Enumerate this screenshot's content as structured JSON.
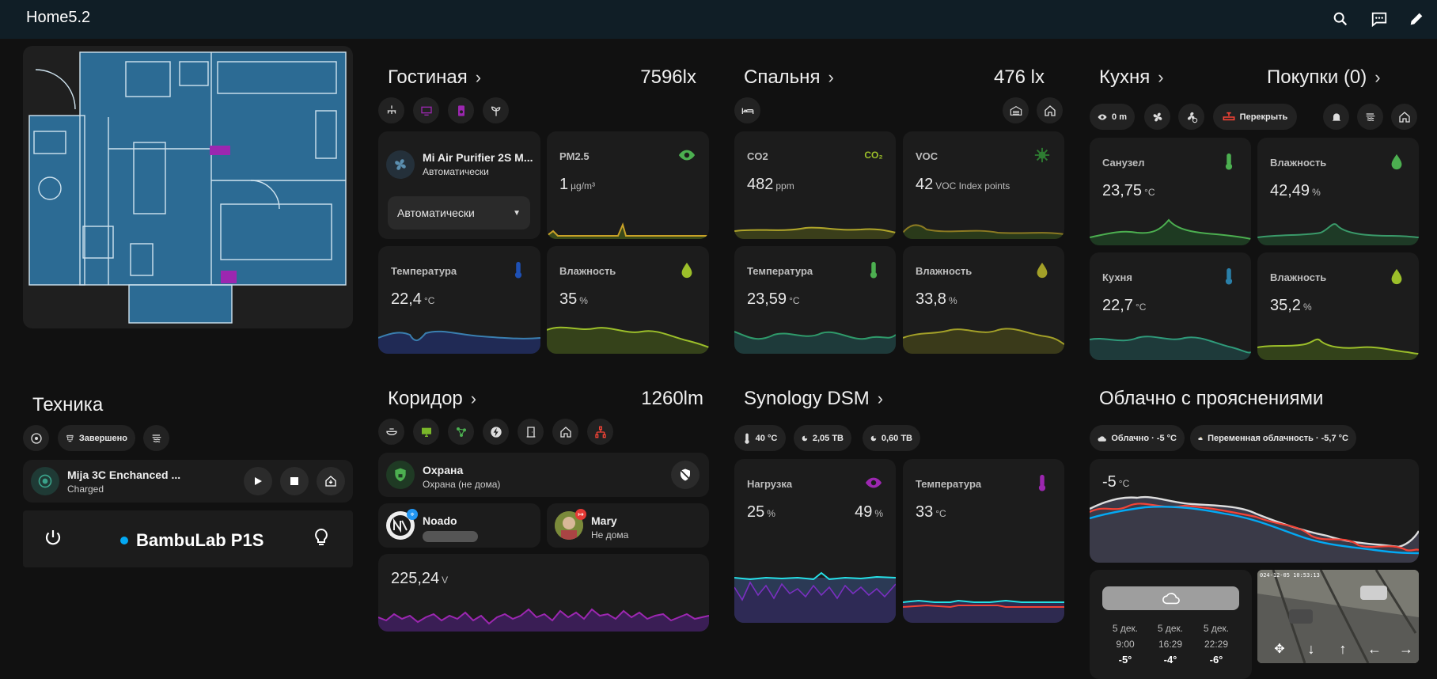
{
  "header": {
    "title": "Home5.2"
  },
  "colors": {
    "accent": "#03a9f4",
    "purple": "#9c27b0",
    "green": "#4caf50",
    "red": "#f44336",
    "lime": "#8bc34a"
  },
  "living": {
    "title": "Гостиная",
    "value": "7596lx",
    "purifier": {
      "name": "Mi Air Purifier 2S M...",
      "state": "Автоматически",
      "select": "Автоматически"
    },
    "pm25": {
      "label": "PM2.5",
      "value": "1",
      "unit": "µg/m³"
    },
    "temp": {
      "label": "Температура",
      "value": "22,4",
      "unit": "°C"
    },
    "hum": {
      "label": "Влажность",
      "value": "35",
      "unit": "%"
    }
  },
  "bedroom": {
    "title": "Спальня",
    "value": "476 lx",
    "co2": {
      "label": "CO2",
      "value": "482",
      "unit": "ppm",
      "icon_text": "CO₂"
    },
    "voc": {
      "label": "VOC",
      "value": "42",
      "unit": "VOC Index points"
    },
    "temp": {
      "label": "Температура",
      "value": "23,59",
      "unit": "°C"
    },
    "hum": {
      "label": "Влажность",
      "value": "33,8",
      "unit": "%"
    }
  },
  "kitchen": {
    "title": "Кухня",
    "shopping": "Покупки (0)",
    "chip_distance": "0 m",
    "chip_valve": "Перекрыть",
    "bath_temp": {
      "label": "Санузел",
      "value": "23,75",
      "unit": "°C"
    },
    "bath_hum": {
      "label": "Влажность",
      "value": "42,49",
      "unit": "%"
    },
    "kitchen_temp": {
      "label": "Кухня",
      "value": "22,7",
      "unit": "°C"
    },
    "kitchen_hum": {
      "label": "Влажность",
      "value": "35,2",
      "unit": "%"
    }
  },
  "tech": {
    "title": "Техника",
    "chip_status": "Завершено",
    "vacuum": {
      "name": "Mija 3C Enchanced ...",
      "state": "Charged"
    },
    "printer": {
      "name": "BambuLab P1S"
    }
  },
  "corridor": {
    "title": "Коридор",
    "value": "1260lm",
    "alarm": {
      "name": "Охрана",
      "state": "Охрана (не дома)"
    },
    "person1": {
      "name": "Noado"
    },
    "person2": {
      "name": "Mary",
      "state": "Не дома"
    },
    "voltage": {
      "value": "225,24",
      "unit": "V"
    }
  },
  "synology": {
    "title": "Synology DSM",
    "chip_temp": "40 °C",
    "chip_vol1": "2,05 TB",
    "chip_vol2": "0,60 TB",
    "load": {
      "label": "Нагрузка",
      "value1": "25",
      "value2": "49",
      "unit": "%"
    },
    "temp": {
      "label": "Температура",
      "value": "33",
      "unit": "°C"
    }
  },
  "weather": {
    "title": "Облачно с прояснениями",
    "chip1": "Облачно · -5 °C",
    "chip2": "Переменная облачность · -5,7 °C",
    "graph": {
      "value": "-5",
      "unit": "°C"
    },
    "forecast": [
      {
        "date": "5 дек.",
        "time": "9:00",
        "temp": "-5°"
      },
      {
        "date": "5 дек.",
        "time": "16:29",
        "temp": "-4°"
      },
      {
        "date": "5 дек.",
        "time": "22:29",
        "temp": "-6°"
      }
    ],
    "camera_stamp": "024-12-05 10:53:13"
  }
}
